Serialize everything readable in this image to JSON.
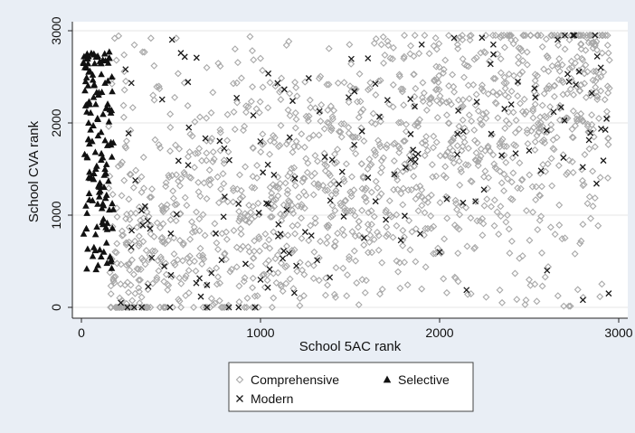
{
  "chart_data": {
    "type": "scatter",
    "xlabel": "School 5AC rank",
    "ylabel": "School CVA rank",
    "xlim": [
      0,
      3000
    ],
    "ylim": [
      0,
      3000
    ],
    "xticks": [
      0,
      1000,
      2000,
      3000
    ],
    "yticks": [
      0,
      1000,
      2000,
      3000
    ],
    "grid": "horizontal",
    "legend_position": "bottom",
    "series": [
      {
        "name": "Comprehensive",
        "marker": "hollow-diamond",
        "color": "#a8a8a8",
        "count": 1500,
        "x_range": [
          150,
          2950
        ],
        "y_range": [
          0,
          2950
        ],
        "trend": "weak positive: dense at low ranks on both axes, dense at high ranks on both axes",
        "points": [
          [
            300,
            150
          ],
          [
            600,
            400
          ],
          [
            900,
            1200
          ],
          [
            1200,
            1800
          ],
          [
            1500,
            2400
          ],
          [
            1800,
            2700
          ],
          [
            2100,
            2850
          ],
          [
            2400,
            2900
          ],
          [
            2700,
            2800
          ],
          [
            2900,
            2500
          ],
          [
            700,
            2600
          ],
          [
            1000,
            2700
          ],
          [
            2500,
            300
          ],
          [
            2800,
            900
          ],
          [
            400,
            2300
          ],
          [
            2200,
            1600
          ],
          [
            1600,
            900
          ],
          [
            1300,
            600
          ],
          [
            1900,
            200
          ],
          [
            2600,
            1900
          ]
        ]
      },
      {
        "name": "Selective",
        "marker": "filled-triangle",
        "color": "#111111",
        "count": 150,
        "x_range": [
          10,
          180
        ],
        "y_range": [
          350,
          2780
        ],
        "points": [
          [
            20,
            2350
          ],
          [
            40,
            2000
          ],
          [
            60,
            1800
          ],
          [
            80,
            1500
          ],
          [
            100,
            1200
          ],
          [
            120,
            900
          ],
          [
            140,
            700
          ],
          [
            160,
            550
          ],
          [
            30,
            2200
          ],
          [
            90,
            2050
          ],
          [
            150,
            2650
          ],
          [
            130,
            2750
          ],
          [
            50,
            1400
          ],
          [
            110,
            1900
          ],
          [
            70,
            650
          ],
          [
            170,
            2500
          ],
          [
            25,
            1100
          ],
          [
            140,
            1550
          ]
        ]
      },
      {
        "name": "Modern",
        "marker": "x",
        "color": "#1a1a1a",
        "count": 170,
        "x_range": [
          200,
          2950
        ],
        "y_range": [
          0,
          2950
        ],
        "points": [
          [
            220,
            50
          ],
          [
            500,
            350
          ],
          [
            800,
            1200
          ],
          [
            1200,
            450
          ],
          [
            1600,
            2700
          ],
          [
            1900,
            2850
          ],
          [
            2300,
            2850
          ],
          [
            2700,
            2950
          ],
          [
            2900,
            2600
          ],
          [
            2800,
            80
          ],
          [
            2500,
            1700
          ],
          [
            2000,
            600
          ],
          [
            1400,
            1600
          ],
          [
            1000,
            300
          ],
          [
            600,
            1950
          ],
          [
            2200,
            1150
          ],
          [
            1700,
            950
          ],
          [
            2600,
            400
          ],
          [
            2400,
            2200
          ],
          [
            1100,
            900
          ]
        ]
      }
    ]
  }
}
